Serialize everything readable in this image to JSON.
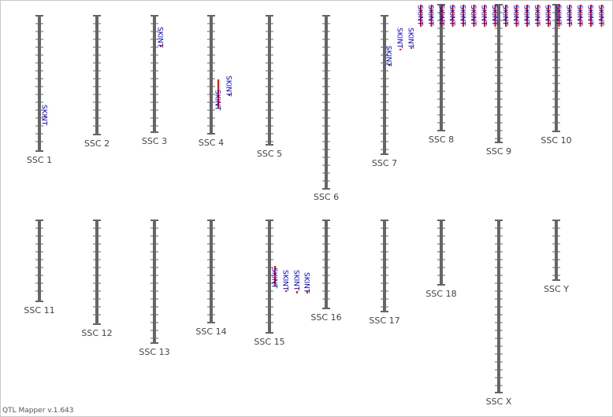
{
  "app": {
    "version_label": "QTL Mapper v.1.643"
  },
  "colors": {
    "chromosome": "#666666",
    "qtl_bar": "#ff0000",
    "qtl_label": "#0000cc",
    "chromosome_label": "#444444"
  },
  "chromosomes": [
    {
      "label": "SSC 1"
    },
    {
      "label": "SSC 2"
    },
    {
      "label": "SSC 3"
    },
    {
      "label": "SSC 4"
    },
    {
      "label": "SSC 5"
    },
    {
      "label": "SSC 6"
    },
    {
      "label": "SSC 7"
    },
    {
      "label": "SSC 8"
    },
    {
      "label": "SSC 9"
    },
    {
      "label": "SSC 10"
    },
    {
      "label": "SSC 11"
    },
    {
      "label": "SSC 12"
    },
    {
      "label": "SSC 13"
    },
    {
      "label": "SSC 14"
    },
    {
      "label": "SSC 15"
    },
    {
      "label": "SSC 16"
    },
    {
      "label": "SSC 17"
    },
    {
      "label": "SSC 18"
    },
    {
      "label": "SSC X"
    },
    {
      "label": "SSC Y"
    }
  ],
  "qtl_trait": "SKINT"
}
